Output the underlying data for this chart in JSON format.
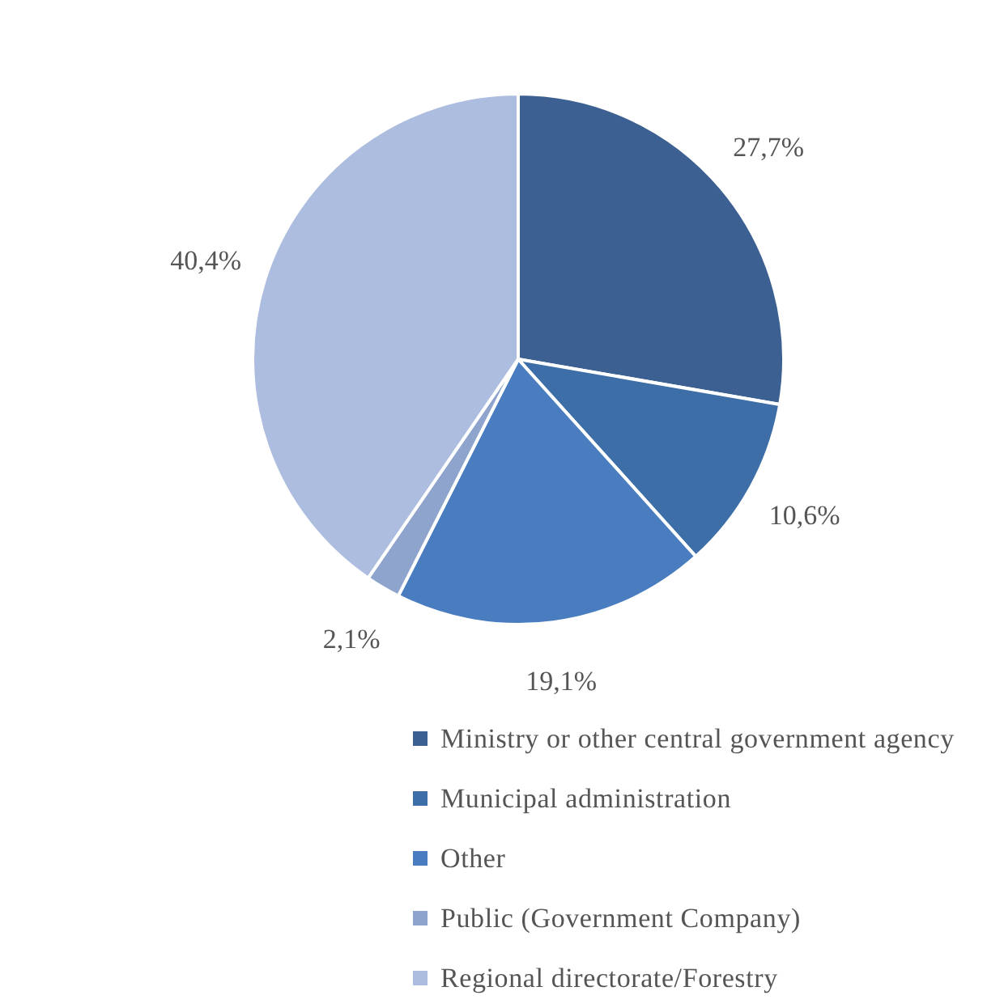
{
  "chart_data": {
    "type": "pie",
    "categories": [
      "Ministry or other central government agency",
      "Municipal administration",
      "Other",
      "Public (Government Company)",
      "Regional directorate/Forestry"
    ],
    "values": [
      27.7,
      10.6,
      19.1,
      2.1,
      40.4
    ],
    "colors": [
      "#3c6091",
      "#3e6ea8",
      "#4a7dc0",
      "#8fa4cd",
      "#adbde0"
    ],
    "value_labels": [
      "27,7%",
      "10,6%",
      "19,1%",
      "2,1%",
      "40,4%"
    ],
    "legend": "bottom"
  }
}
